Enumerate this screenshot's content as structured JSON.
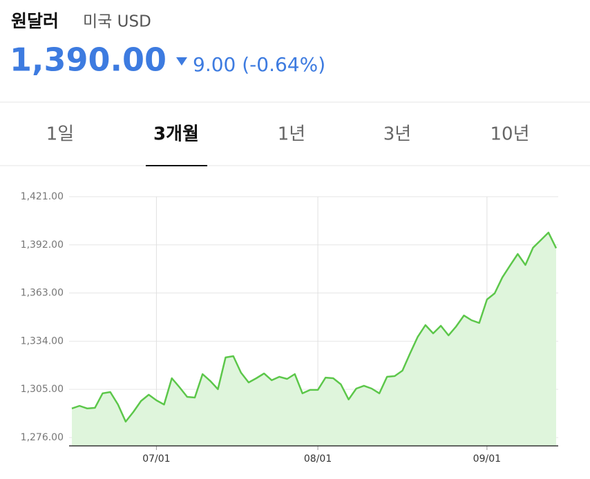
{
  "header": {
    "title": "원달러",
    "subtitle": "미국 USD",
    "price": "1,390.00",
    "change": "9.00 (-0.64%)"
  },
  "tabs": [
    "1일",
    "3개월",
    "1년",
    "3년",
    "10년"
  ],
  "chart_data": {
    "type": "area",
    "color": "#5cc74a",
    "fill": "#dff5dc",
    "grid": true,
    "categories": [
      null,
      null,
      null,
      null,
      null,
      null,
      null,
      null,
      null,
      null,
      null,
      "07/01",
      null,
      null,
      null,
      null,
      null,
      null,
      null,
      null,
      null,
      null,
      null,
      null,
      null,
      null,
      null,
      null,
      null,
      null,
      null,
      null,
      "08/01",
      null,
      null,
      null,
      null,
      null,
      null,
      null,
      null,
      null,
      null,
      null,
      null,
      null,
      null,
      null,
      null,
      null,
      null,
      null,
      null,
      null,
      "09/01",
      null,
      null,
      null,
      null,
      null,
      null,
      null,
      null,
      null
    ],
    "values": [
      1293.5,
      1295.1,
      1293.5,
      1293.9,
      1302.6,
      1303.4,
      1295.9,
      1285.6,
      1291.4,
      1298.0,
      1301.8,
      1298.4,
      1295.9,
      1311.7,
      1306.3,
      1300.5,
      1300.1,
      1314.2,
      1310.1,
      1305.1,
      1324.2,
      1325.0,
      1315.1,
      1309.2,
      1311.7,
      1314.6,
      1310.5,
      1312.6,
      1311.3,
      1314.2,
      1302.6,
      1304.7,
      1304.7,
      1312.1,
      1311.7,
      1308.0,
      1298.9,
      1305.5,
      1307.2,
      1305.5,
      1302.6,
      1312.6,
      1313.0,
      1316.3,
      1326.7,
      1336.7,
      1343.7,
      1338.7,
      1343.3,
      1337.5,
      1342.9,
      1349.5,
      1346.6,
      1345.0,
      1359.1,
      1362.8,
      1372.4,
      1379.5,
      1386.5,
      1379.9,
      1390.3,
      1394.8,
      1399.4,
      1390
    ],
    "ylim": [
      1271,
      1429
    ],
    "yticks": [
      {
        "value": 1276,
        "label": "1,276.00"
      },
      {
        "value": 1305,
        "label": "1,305.00"
      },
      {
        "value": 1334,
        "label": "1,334.00"
      },
      {
        "value": 1363,
        "label": "1,363.00"
      },
      {
        "value": 1392,
        "label": "1,392.00"
      },
      {
        "value": 1421,
        "label": "1,421.00"
      }
    ]
  }
}
